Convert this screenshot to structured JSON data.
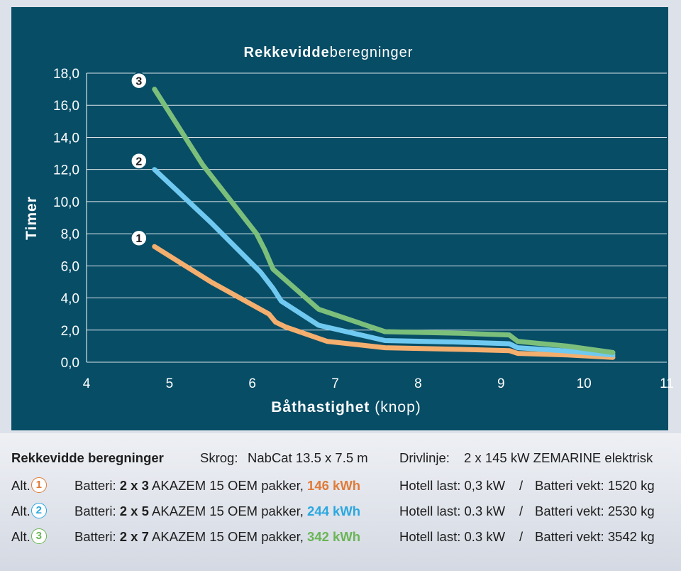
{
  "colors": {
    "panel": "#074d66",
    "grid": "#ffffff",
    "alt1": "#f4ae6e",
    "alt2": "#70c9f0",
    "alt3": "#7bbf7b",
    "alt1_text": "#e07b39",
    "alt2_text": "#2aa7df",
    "alt3_text": "#6ab556"
  },
  "chart_data": {
    "type": "line",
    "title_bold": "Rekkevidde",
    "title_rest": "beregninger",
    "xlabel_bold": "Båthastighet",
    "xlabel_rest": "(knop)",
    "ylabel": "Timer",
    "xlim": [
      4,
      11
    ],
    "ylim": [
      0,
      18
    ],
    "xticks": [
      "4",
      "5",
      "6",
      "7",
      "8",
      "9",
      "10",
      "11"
    ],
    "yticks": [
      "0,0",
      "2,0",
      "4,0",
      "6,0",
      "8,0",
      "10,0",
      "12,0",
      "14,0",
      "16,0",
      "18,0"
    ],
    "grid": true,
    "series": [
      {
        "name": "1",
        "label": "1",
        "color": "#f4ae6e",
        "x": [
          4.82,
          5.5,
          6.2,
          6.28,
          6.4,
          6.9,
          7.6,
          8.5,
          9.1,
          9.2,
          9.8,
          10.35
        ],
        "y": [
          7.2,
          5.0,
          3.0,
          2.5,
          2.2,
          1.3,
          0.9,
          0.8,
          0.72,
          0.55,
          0.45,
          0.3
        ]
      },
      {
        "name": "2",
        "label": "2",
        "color": "#70c9f0",
        "x": [
          4.82,
          5.5,
          6.1,
          6.25,
          6.35,
          6.8,
          7.6,
          8.5,
          9.1,
          9.2,
          9.8,
          10.35
        ],
        "y": [
          12.0,
          8.7,
          5.6,
          4.6,
          3.8,
          2.3,
          1.35,
          1.25,
          1.15,
          0.9,
          0.7,
          0.45
        ]
      },
      {
        "name": "3",
        "label": "3",
        "color": "#7bbf7b",
        "x": [
          4.82,
          5.4,
          6.05,
          6.15,
          6.25,
          6.8,
          7.6,
          8.5,
          9.1,
          9.2,
          9.8,
          10.35
        ],
        "y": [
          17.0,
          12.3,
          8.0,
          7.0,
          5.8,
          3.3,
          1.9,
          1.8,
          1.7,
          1.3,
          1.0,
          0.6
        ]
      }
    ]
  },
  "legend": {
    "title": "Rekkevidde beregninger",
    "hull_label": "Skrog:",
    "hull_value": "NabCat 13.5 x 7.5 m",
    "drive_label": "Drivlinje:",
    "drive_value": "2 x 145 kW ZEMARINE elektrisk",
    "rows": [
      {
        "alt": "Alt.",
        "num": "1",
        "battery_label": "Batteri:",
        "config": "2 x 3",
        "pack": "AKAZEM 15 OEM pakker,",
        "kwh": "146 kWh",
        "hotel": "Hotell last: 0,3 kW",
        "sep": "/",
        "weight": "Batteri vekt: 1520 kg"
      },
      {
        "alt": "Alt.",
        "num": "2",
        "battery_label": "Batteri:",
        "config": "2 x 5",
        "pack": "AKAZEM 15 OEM pakker,",
        "kwh": "244 kWh",
        "hotel": "Hotell last: 0.3 kW",
        "sep": "/",
        "weight": "Batteri vekt: 2530 kg"
      },
      {
        "alt": "Alt.",
        "num": "3",
        "battery_label": "Batteri:",
        "config": "2 x 7",
        "pack": "AKAZEM 15 OEM pakker,",
        "kwh": "342 kWh",
        "hotel": "Hotell last: 0.3 kW",
        "sep": "/",
        "weight": "Batteri vekt: 3542 kg"
      }
    ]
  }
}
